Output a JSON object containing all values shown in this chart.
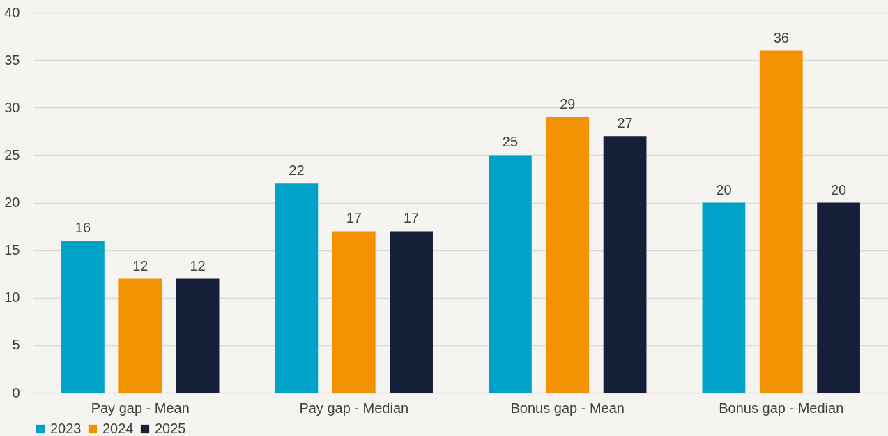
{
  "chart_data": {
    "type": "bar",
    "categories": [
      "Pay gap - Mean",
      "Pay gap - Median",
      "Bonus gap - Mean",
      "Bonus gap - Median"
    ],
    "series": [
      {
        "name": "2023",
        "color": "#00a3c7",
        "values": [
          16,
          22,
          25,
          20
        ]
      },
      {
        "name": "2024",
        "color": "#f39200",
        "values": [
          12,
          17,
          29,
          36
        ]
      },
      {
        "name": "2025",
        "color": "#161f38",
        "values": [
          12,
          17,
          27,
          20
        ]
      }
    ],
    "ylim": [
      0,
      40
    ],
    "yticks": [
      0,
      5,
      10,
      15,
      20,
      25,
      30,
      35,
      40
    ],
    "grid": "y",
    "legend": "bottom",
    "data_labels": true
  }
}
